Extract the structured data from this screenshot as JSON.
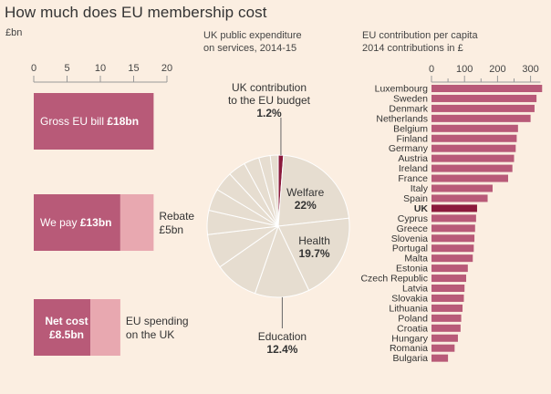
{
  "title": "How much does EU membership cost",
  "left_unit": "£bn",
  "pie_label_line1": "UK public expenditure",
  "pie_label_line2": "on services, 2014-15",
  "right_label_line1": "EU contribution per capita",
  "right_label_line2": "2014 contributions in £",
  "colors": {
    "background": "#fbeee1",
    "bar_dark": "#b85a78",
    "bar_light": "#e8a8b0",
    "uk_bar": "#8b1a3c",
    "pie_fill": "#e6ddd0",
    "pie_eu": "#8b1a3c"
  },
  "chart_data": [
    {
      "type": "bar",
      "orientation": "horizontal",
      "xlim": [
        0,
        20
      ],
      "xticks": [
        "0",
        "5",
        "10",
        "15",
        "20"
      ],
      "bars": [
        {
          "label_plain": "Gross EU bill ",
          "label_bold": "£18bn",
          "value": 18,
          "segments": [
            {
              "value": 18,
              "color": "dark"
            }
          ]
        },
        {
          "label_plain": "We pay ",
          "label_bold": "£13bn",
          "value": 13,
          "segments": [
            {
              "value": 13,
              "color": "dark"
            },
            {
              "value": 5,
              "color": "light"
            }
          ],
          "side_label_1": "Rebate",
          "side_label_2": "£5bn"
        },
        {
          "label_bold_1": "Net cost",
          "label_bold_2": "£8.5bn",
          "value": 8.5,
          "segments": [
            {
              "value": 8.5,
              "color": "dark"
            },
            {
              "value": 4.5,
              "color": "light"
            }
          ],
          "side_label_1": "EU spending",
          "side_label_2": "on the UK"
        }
      ]
    },
    {
      "type": "pie",
      "slices": [
        {
          "name": "UK contribution to the EU budget",
          "value": 1.2,
          "label_1": "UK contribution",
          "label_2": "to the EU budget",
          "value_label": "1.2%",
          "highlight": true
        },
        {
          "name": "Welfare",
          "value": 22,
          "label_1": "Welfare",
          "value_label": "22%"
        },
        {
          "name": "Health",
          "value": 19.7,
          "label_1": "Health",
          "value_label": "19.7%"
        },
        {
          "name": "Education",
          "value": 12.4,
          "label_1": "Education",
          "value_label": "12.4%"
        },
        {
          "name": "",
          "value": 10
        },
        {
          "name": "",
          "value": 7.8
        },
        {
          "name": "",
          "value": 5.5
        },
        {
          "name": "",
          "value": 5
        },
        {
          "name": "",
          "value": 4.5
        },
        {
          "name": "",
          "value": 4
        },
        {
          "name": "",
          "value": 3.5
        },
        {
          "name": "",
          "value": 2.6
        },
        {
          "name": "",
          "value": 1.8
        }
      ]
    },
    {
      "type": "bar",
      "orientation": "horizontal",
      "xlim": [
        0,
        330
      ],
      "xticks": [
        "0",
        "100",
        "200",
        "300"
      ],
      "xtick_values": [
        0,
        100,
        200,
        300
      ],
      "minor_ticks": [
        50,
        150,
        250
      ],
      "categories": [
        "Luxembourg",
        "Sweden",
        "Denmark",
        "Netherlands",
        "Belgium",
        "Finland",
        "Germany",
        "Austria",
        "Ireland",
        "France",
        "Italy",
        "Spain",
        "UK",
        "Cyprus",
        "Greece",
        "Slovenia",
        "Portugal",
        "Malta",
        "Estonia",
        "Czech Republic",
        "Latvia",
        "Slovakia",
        "Lithuania",
        "Poland",
        "Croatia",
        "Hungary",
        "Romania",
        "Bulgaria"
      ],
      "values": [
        335,
        318,
        312,
        300,
        262,
        258,
        255,
        250,
        245,
        232,
        185,
        170,
        138,
        135,
        132,
        130,
        128,
        125,
        110,
        105,
        100,
        98,
        94,
        90,
        88,
        80,
        70,
        50
      ],
      "highlight": "UK"
    }
  ]
}
